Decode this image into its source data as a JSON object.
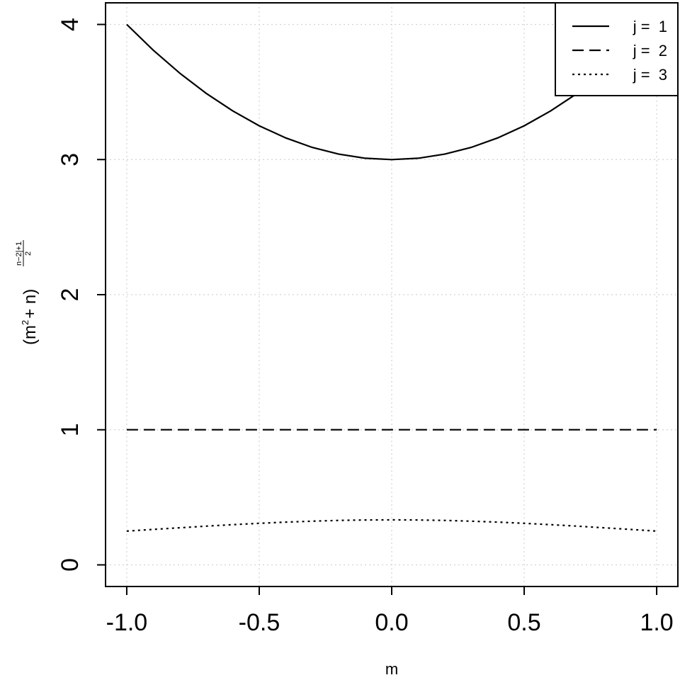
{
  "chart_data": {
    "type": "line",
    "xlabel": "m",
    "ylabel": {
      "open": "(m",
      "sup": "2",
      "mid": "+ n)",
      "exp_numerator": "n−2|+1",
      "exp_denominator": "2"
    },
    "xlim": [
      -1.08,
      1.08
    ],
    "ylim": [
      -0.16,
      4.16
    ],
    "x_ticks": [
      -1.0,
      -0.5,
      0.0,
      0.5,
      1.0
    ],
    "x_tick_labels": [
      "-1.0",
      "-0.5",
      "0.0",
      "0.5",
      "1.0"
    ],
    "y_ticks": [
      0,
      1,
      2,
      3,
      4
    ],
    "y_tick_labels": [
      "0",
      "1",
      "2",
      "3",
      "4"
    ],
    "grid": true,
    "legend_position": "top-right",
    "x": [
      -1.0,
      -0.9,
      -0.8,
      -0.7,
      -0.6,
      -0.5,
      -0.4,
      -0.3,
      -0.2,
      -0.1,
      0.0,
      0.1,
      0.2,
      0.3,
      0.4,
      0.5,
      0.6,
      0.7,
      0.8,
      0.9,
      1.0
    ],
    "series": [
      {
        "name": "j =  1",
        "line_style": "solid",
        "values": [
          4.0,
          3.81,
          3.64,
          3.49,
          3.36,
          3.25,
          3.16,
          3.09,
          3.04,
          3.01,
          3.0,
          3.01,
          3.04,
          3.09,
          3.16,
          3.25,
          3.36,
          3.49,
          3.64,
          3.81,
          4.0
        ]
      },
      {
        "name": "j =  2",
        "line_style": "dashed",
        "values": [
          1.0,
          1.0,
          1.0,
          1.0,
          1.0,
          1.0,
          1.0,
          1.0,
          1.0,
          1.0,
          1.0,
          1.0,
          1.0,
          1.0,
          1.0,
          1.0,
          1.0,
          1.0,
          1.0,
          1.0,
          1.0
        ]
      },
      {
        "name": "j =  3",
        "line_style": "dotted",
        "values": [
          0.25,
          0.2625,
          0.2747,
          0.2865,
          0.2976,
          0.3077,
          0.3165,
          0.3236,
          0.3289,
          0.3322,
          0.3333,
          0.3322,
          0.3289,
          0.3236,
          0.3165,
          0.3077,
          0.2976,
          0.2865,
          0.2747,
          0.2625,
          0.25
        ]
      }
    ]
  }
}
